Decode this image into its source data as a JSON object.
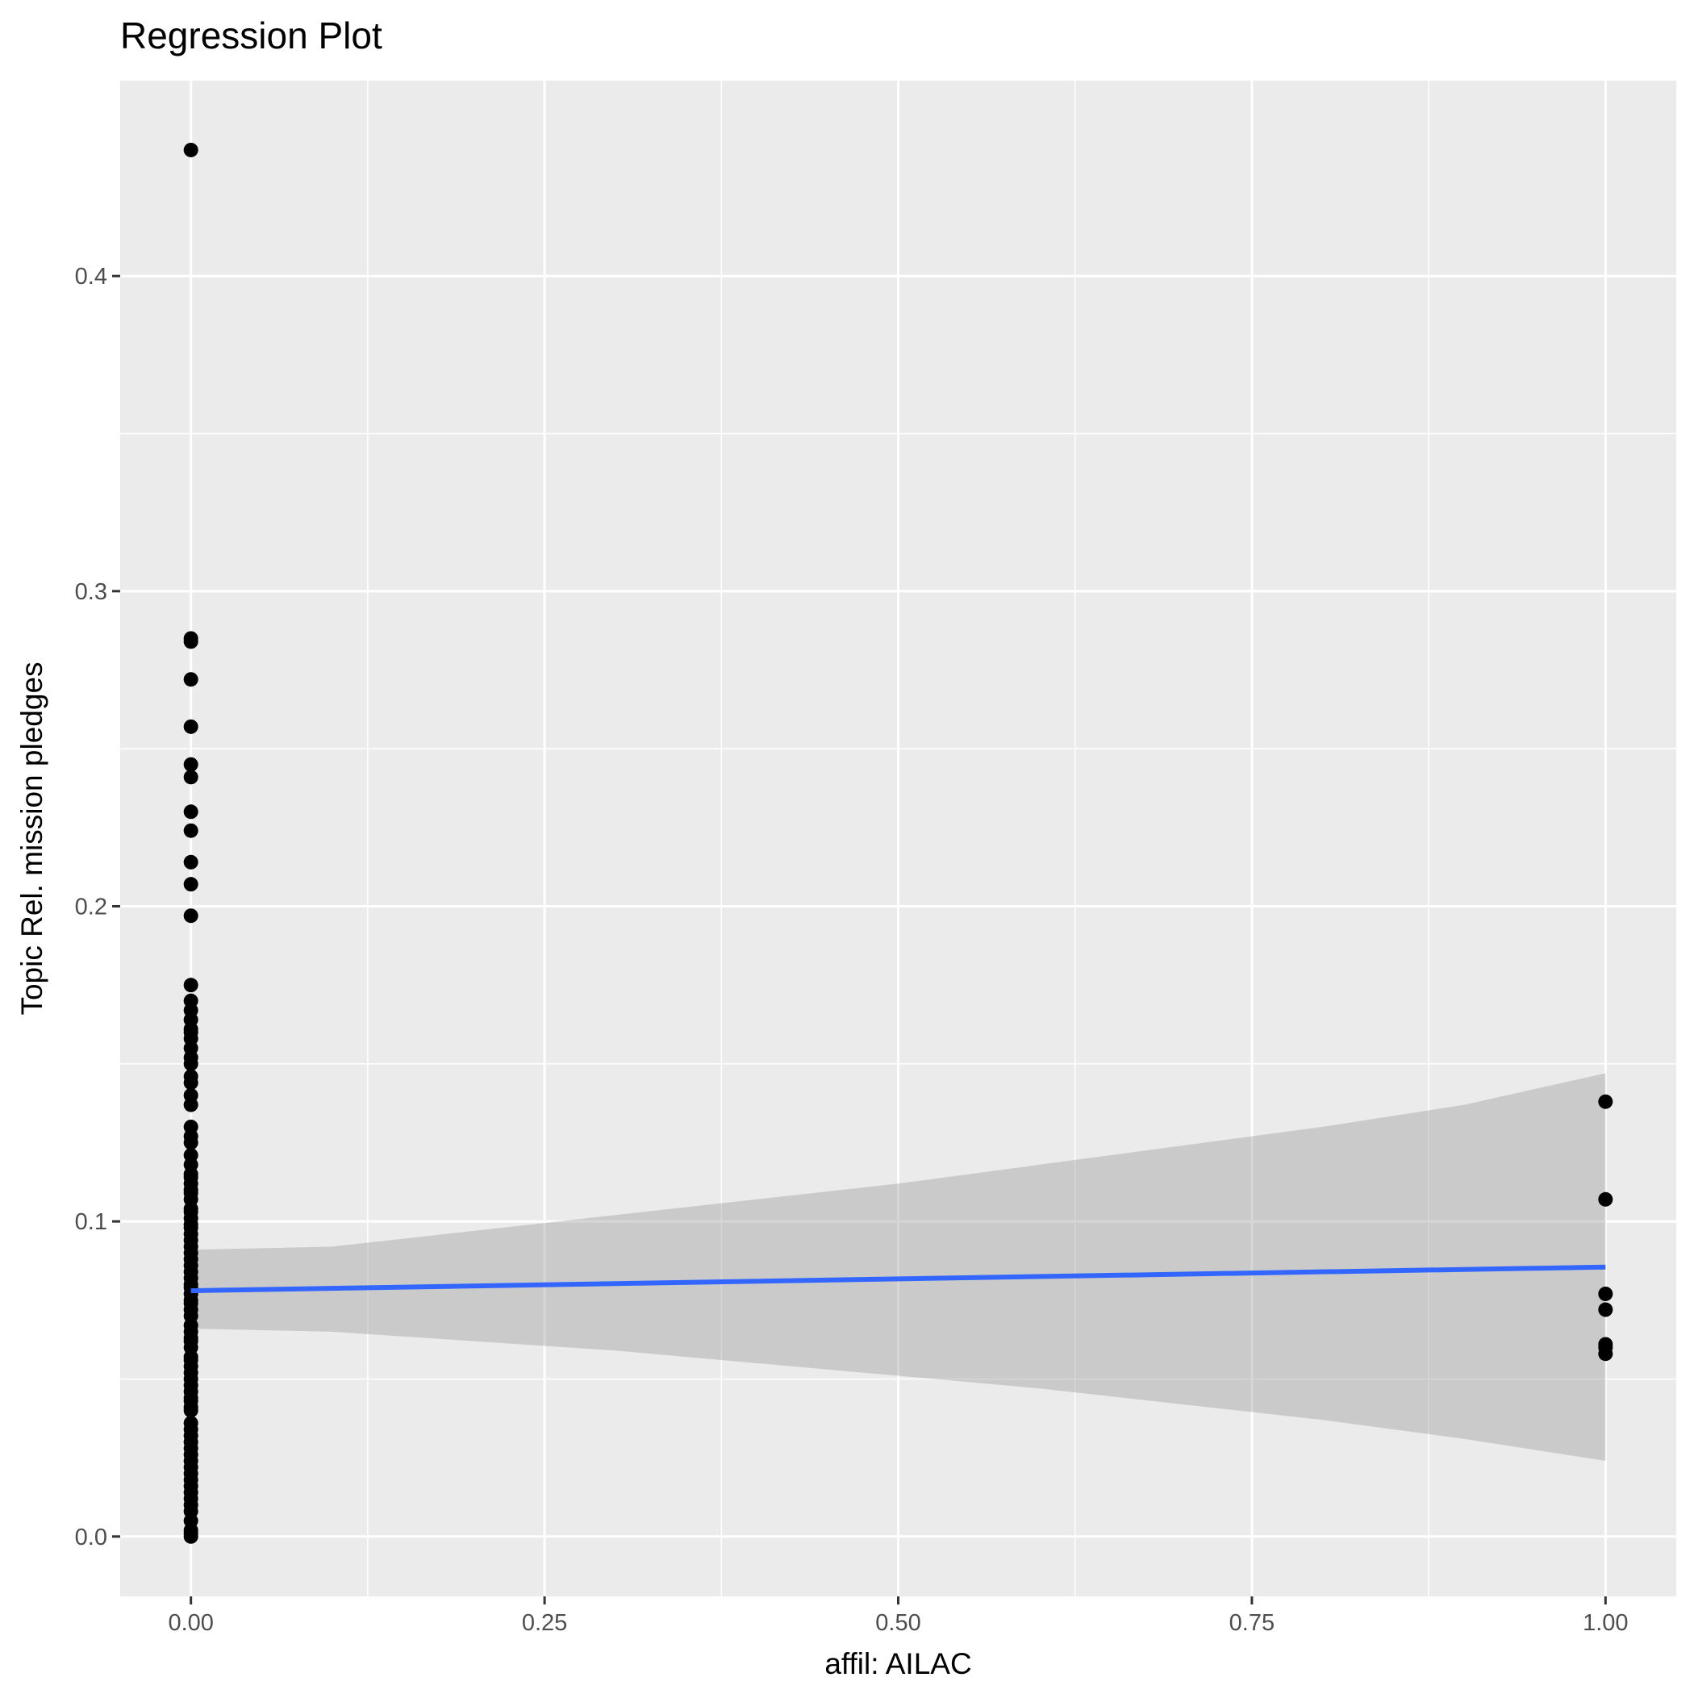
{
  "chart_data": {
    "type": "scatter",
    "title": "Regression Plot",
    "xlabel": "affil: AILAC",
    "ylabel": "Topic Rel. mission pledges",
    "xlim": [
      -0.05,
      1.05
    ],
    "ylim": [
      -0.019,
      0.462
    ],
    "x_ticks": [
      0.0,
      0.25,
      0.5,
      0.75,
      1.0
    ],
    "x_tick_labels": [
      "0.00",
      "0.25",
      "0.50",
      "0.75",
      "1.00"
    ],
    "y_ticks": [
      0.0,
      0.1,
      0.2,
      0.3,
      0.4
    ],
    "y_tick_labels": [
      "0.0",
      "0.1",
      "0.2",
      "0.3",
      "0.4"
    ],
    "grid": true,
    "legend": "none",
    "points": {
      "x": [
        0,
        0,
        0,
        0,
        0,
        0,
        0,
        0,
        0,
        0,
        0,
        0,
        0,
        0,
        0,
        0,
        0,
        0,
        0,
        0,
        0,
        0,
        0,
        0,
        0,
        0,
        0,
        0,
        0,
        0,
        0,
        0,
        0,
        0,
        0,
        0,
        0,
        0,
        0,
        0,
        0,
        0,
        0,
        0,
        0,
        0,
        0,
        0,
        0,
        0,
        0,
        0,
        0,
        0,
        0,
        0,
        0,
        0,
        0,
        0,
        0,
        0,
        0,
        0,
        0,
        0,
        0,
        0,
        0,
        0,
        0,
        0,
        0,
        0,
        0,
        0,
        0,
        0,
        0,
        0,
        0,
        0,
        0,
        0,
        0,
        0,
        0,
        0,
        0,
        0,
        0,
        0,
        1,
        1,
        1,
        1,
        1,
        1,
        1
      ],
      "y": [
        0.44,
        0.285,
        0.284,
        0.272,
        0.257,
        0.245,
        0.241,
        0.23,
        0.224,
        0.214,
        0.207,
        0.197,
        0.175,
        0.17,
        0.167,
        0.164,
        0.161,
        0.158,
        0.155,
        0.152,
        0.146,
        0.144,
        0.137,
        0.13,
        0.125,
        0.121,
        0.118,
        0.115,
        0.112,
        0.11,
        0.107,
        0.104,
        0.101,
        0.098,
        0.096,
        0.092,
        0.09,
        0.088,
        0.086,
        0.084,
        0.082,
        0.08,
        0.077,
        0.075,
        0.07,
        0.067,
        0.065,
        0.062,
        0.06,
        0.057,
        0.054,
        0.052,
        0.05,
        0.048,
        0.046,
        0.043,
        0.041,
        0.04,
        0.034,
        0.032,
        0.03,
        0.028,
        0.026,
        0.024,
        0.022,
        0.02,
        0.016,
        0.014,
        0.012,
        0.01,
        0.008,
        0.005,
        0.002,
        0.001,
        0.0,
        0.072,
        0.074,
        0.079,
        0.094,
        0.099,
        0.103,
        0.109,
        0.114,
        0.127,
        0.14,
        0.15,
        0.16,
        0.056,
        0.063,
        0.036,
        0.018,
        0.044,
        0.138,
        0.107,
        0.077,
        0.072,
        0.061,
        0.06,
        0.058
      ]
    },
    "fit_line": {
      "x": [
        0,
        1
      ],
      "y": [
        0.078,
        0.0855
      ],
      "color": "#3366FF"
    },
    "confidence_band": {
      "x": [
        0,
        0.1,
        0.2,
        0.3,
        0.4,
        0.5,
        0.6,
        0.7,
        0.8,
        0.9,
        1.0
      ],
      "lower": [
        0.066,
        0.065,
        0.062,
        0.059,
        0.055,
        0.051,
        0.047,
        0.042,
        0.037,
        0.031,
        0.024
      ],
      "upper": [
        0.091,
        0.092,
        0.097,
        0.102,
        0.107,
        0.112,
        0.118,
        0.124,
        0.13,
        0.137,
        0.147
      ],
      "color": "#999999"
    },
    "colors": {
      "panel": "#EBEBEB",
      "grid": "#FFFFFF",
      "points": "#000000",
      "fit": "#3366FF"
    }
  }
}
